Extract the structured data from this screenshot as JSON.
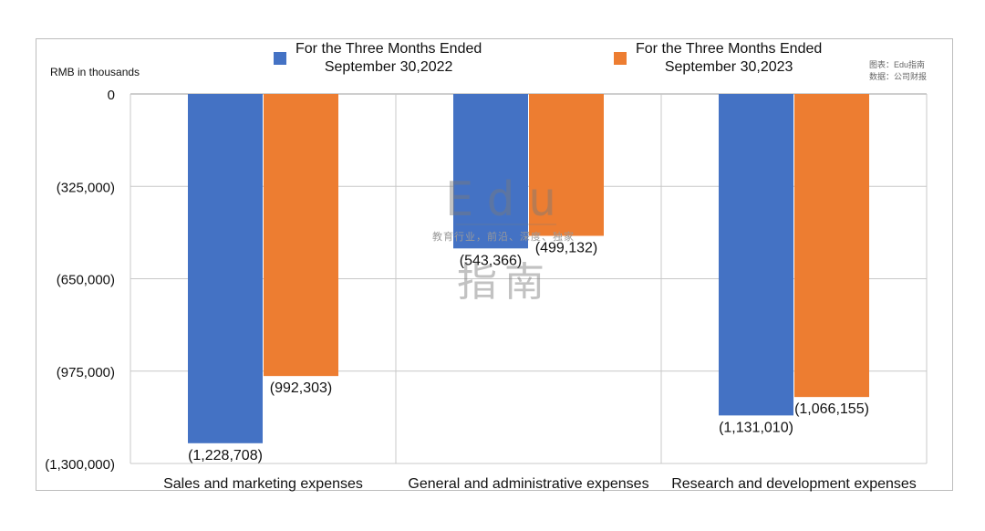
{
  "chart_data": {
    "type": "bar",
    "unit_label": "RMB in thousands",
    "categories": [
      "Sales and marketing expenses",
      "General and administrative expenses",
      "Research and development expenses"
    ],
    "series": [
      {
        "name": "For the Three Months Ended\nSeptember 30,2022",
        "color": "#4472c4",
        "values": [
          -1228708,
          -543366,
          -1131010
        ],
        "labels": [
          "(1,228,708)",
          "(543,366)",
          "(1,131,010)"
        ]
      },
      {
        "name": "For the Three Months Ended\nSeptember 30,2023",
        "color": "#ed7d31",
        "values": [
          -992303,
          -499132,
          -1066155
        ],
        "labels": [
          "(992,303)",
          "(499,132)",
          "(1,066,155)"
        ]
      }
    ],
    "ylim": [
      -1300000,
      0
    ],
    "yticks": [
      {
        "value": 0,
        "label": "0"
      },
      {
        "value": -325000,
        "label": "(325,000)"
      },
      {
        "value": -650000,
        "label": "(650,000)"
      },
      {
        "value": -975000,
        "label": "(975,000)"
      },
      {
        "value": -1300000,
        "label": "(1,300,000)"
      }
    ],
    "grid": true,
    "legend_position": "top"
  },
  "credit": {
    "line1": "图表：Edu指南",
    "line2": "数据：公司财报"
  },
  "watermark": {
    "logo_top": "Edu",
    "tagline": "教育行业，前沿、深度、独家",
    "logo_bottom": "指南"
  }
}
